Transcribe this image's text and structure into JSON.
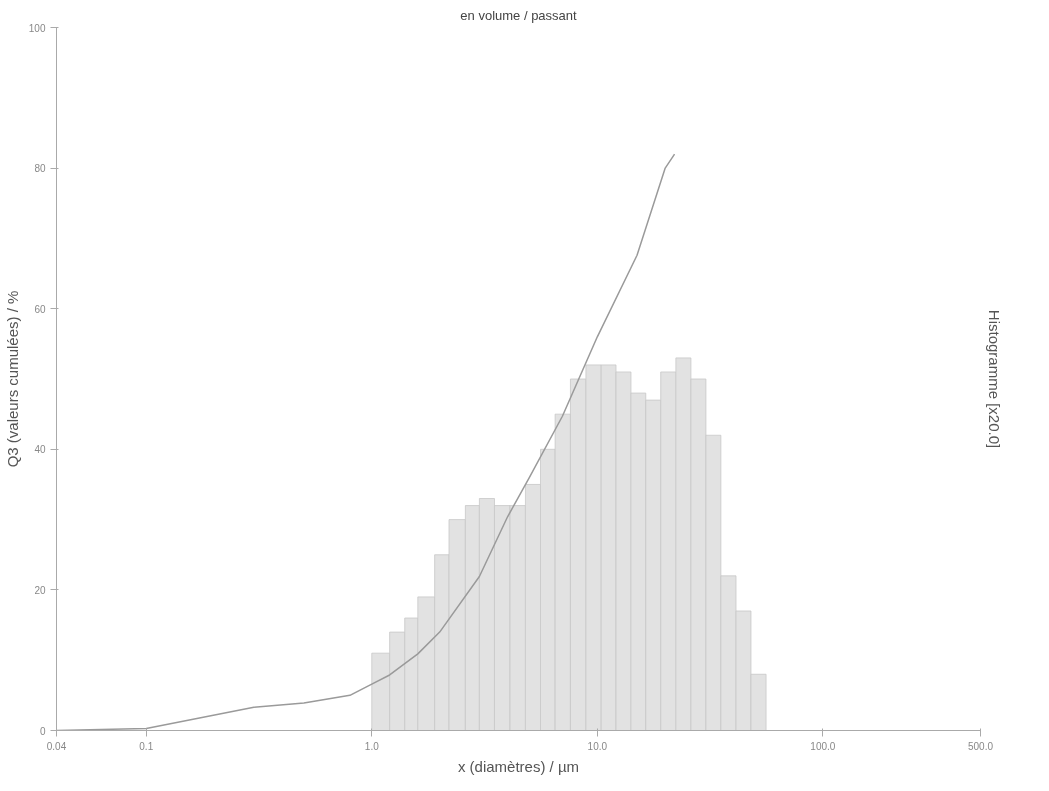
{
  "chart_data": {
    "type": "line",
    "title": "en volume / passant",
    "xlabel": "x (diamètres) / µm",
    "ylabel": "Q3 (valeurs cumulées) / %",
    "y2label": "Histogramme [x20.0]",
    "log": "x",
    "xlim": [
      0.04,
      500
    ],
    "ylim": [
      0,
      100
    ],
    "xticks": [
      {
        "value": 0.04,
        "label": "0.04"
      },
      {
        "value": 0.1,
        "label": "0.1"
      },
      {
        "value": 1,
        "label": "1.0"
      },
      {
        "value": 10,
        "label": "10.0"
      },
      {
        "value": 100,
        "label": "100.0"
      },
      {
        "value": 500,
        "label": "500.0"
      }
    ],
    "yticks": [
      0,
      20,
      40,
      60,
      80,
      100
    ],
    "grid": false,
    "series": [
      {
        "type": "histogram",
        "color": "#e2e2e2",
        "bins": [
          1.0,
          1.2,
          1.4,
          1.6,
          1.9,
          2.2,
          2.6,
          3.0,
          3.5,
          4.1,
          4.8,
          5.6,
          6.5,
          7.6,
          8.9,
          10.4,
          12.1,
          14.1,
          16.4,
          19.1,
          22.3,
          26.0,
          30.3,
          35.3,
          41.2,
          48.0,
          56.0
        ],
        "values": [
          11,
          14,
          16,
          19,
          25,
          30,
          32,
          33,
          32,
          32,
          35,
          40,
          45,
          50,
          52,
          52,
          51,
          48,
          47,
          51,
          53,
          50,
          42,
          22,
          17,
          8
        ]
      },
      {
        "color": "#9a9a9a",
        "x": [
          0.04,
          0.1,
          0.3,
          0.5,
          0.8,
          1.0,
          1.2,
          1.6,
          2,
          3,
          4,
          5,
          7,
          10,
          15,
          20,
          22
        ],
        "values": [
          0,
          0.3,
          3.3,
          3.9,
          5,
          6.6,
          7.9,
          10.9,
          14,
          21.9,
          30.4,
          36,
          44.7,
          56,
          67.6,
          80,
          82
        ]
      }
    ]
  }
}
